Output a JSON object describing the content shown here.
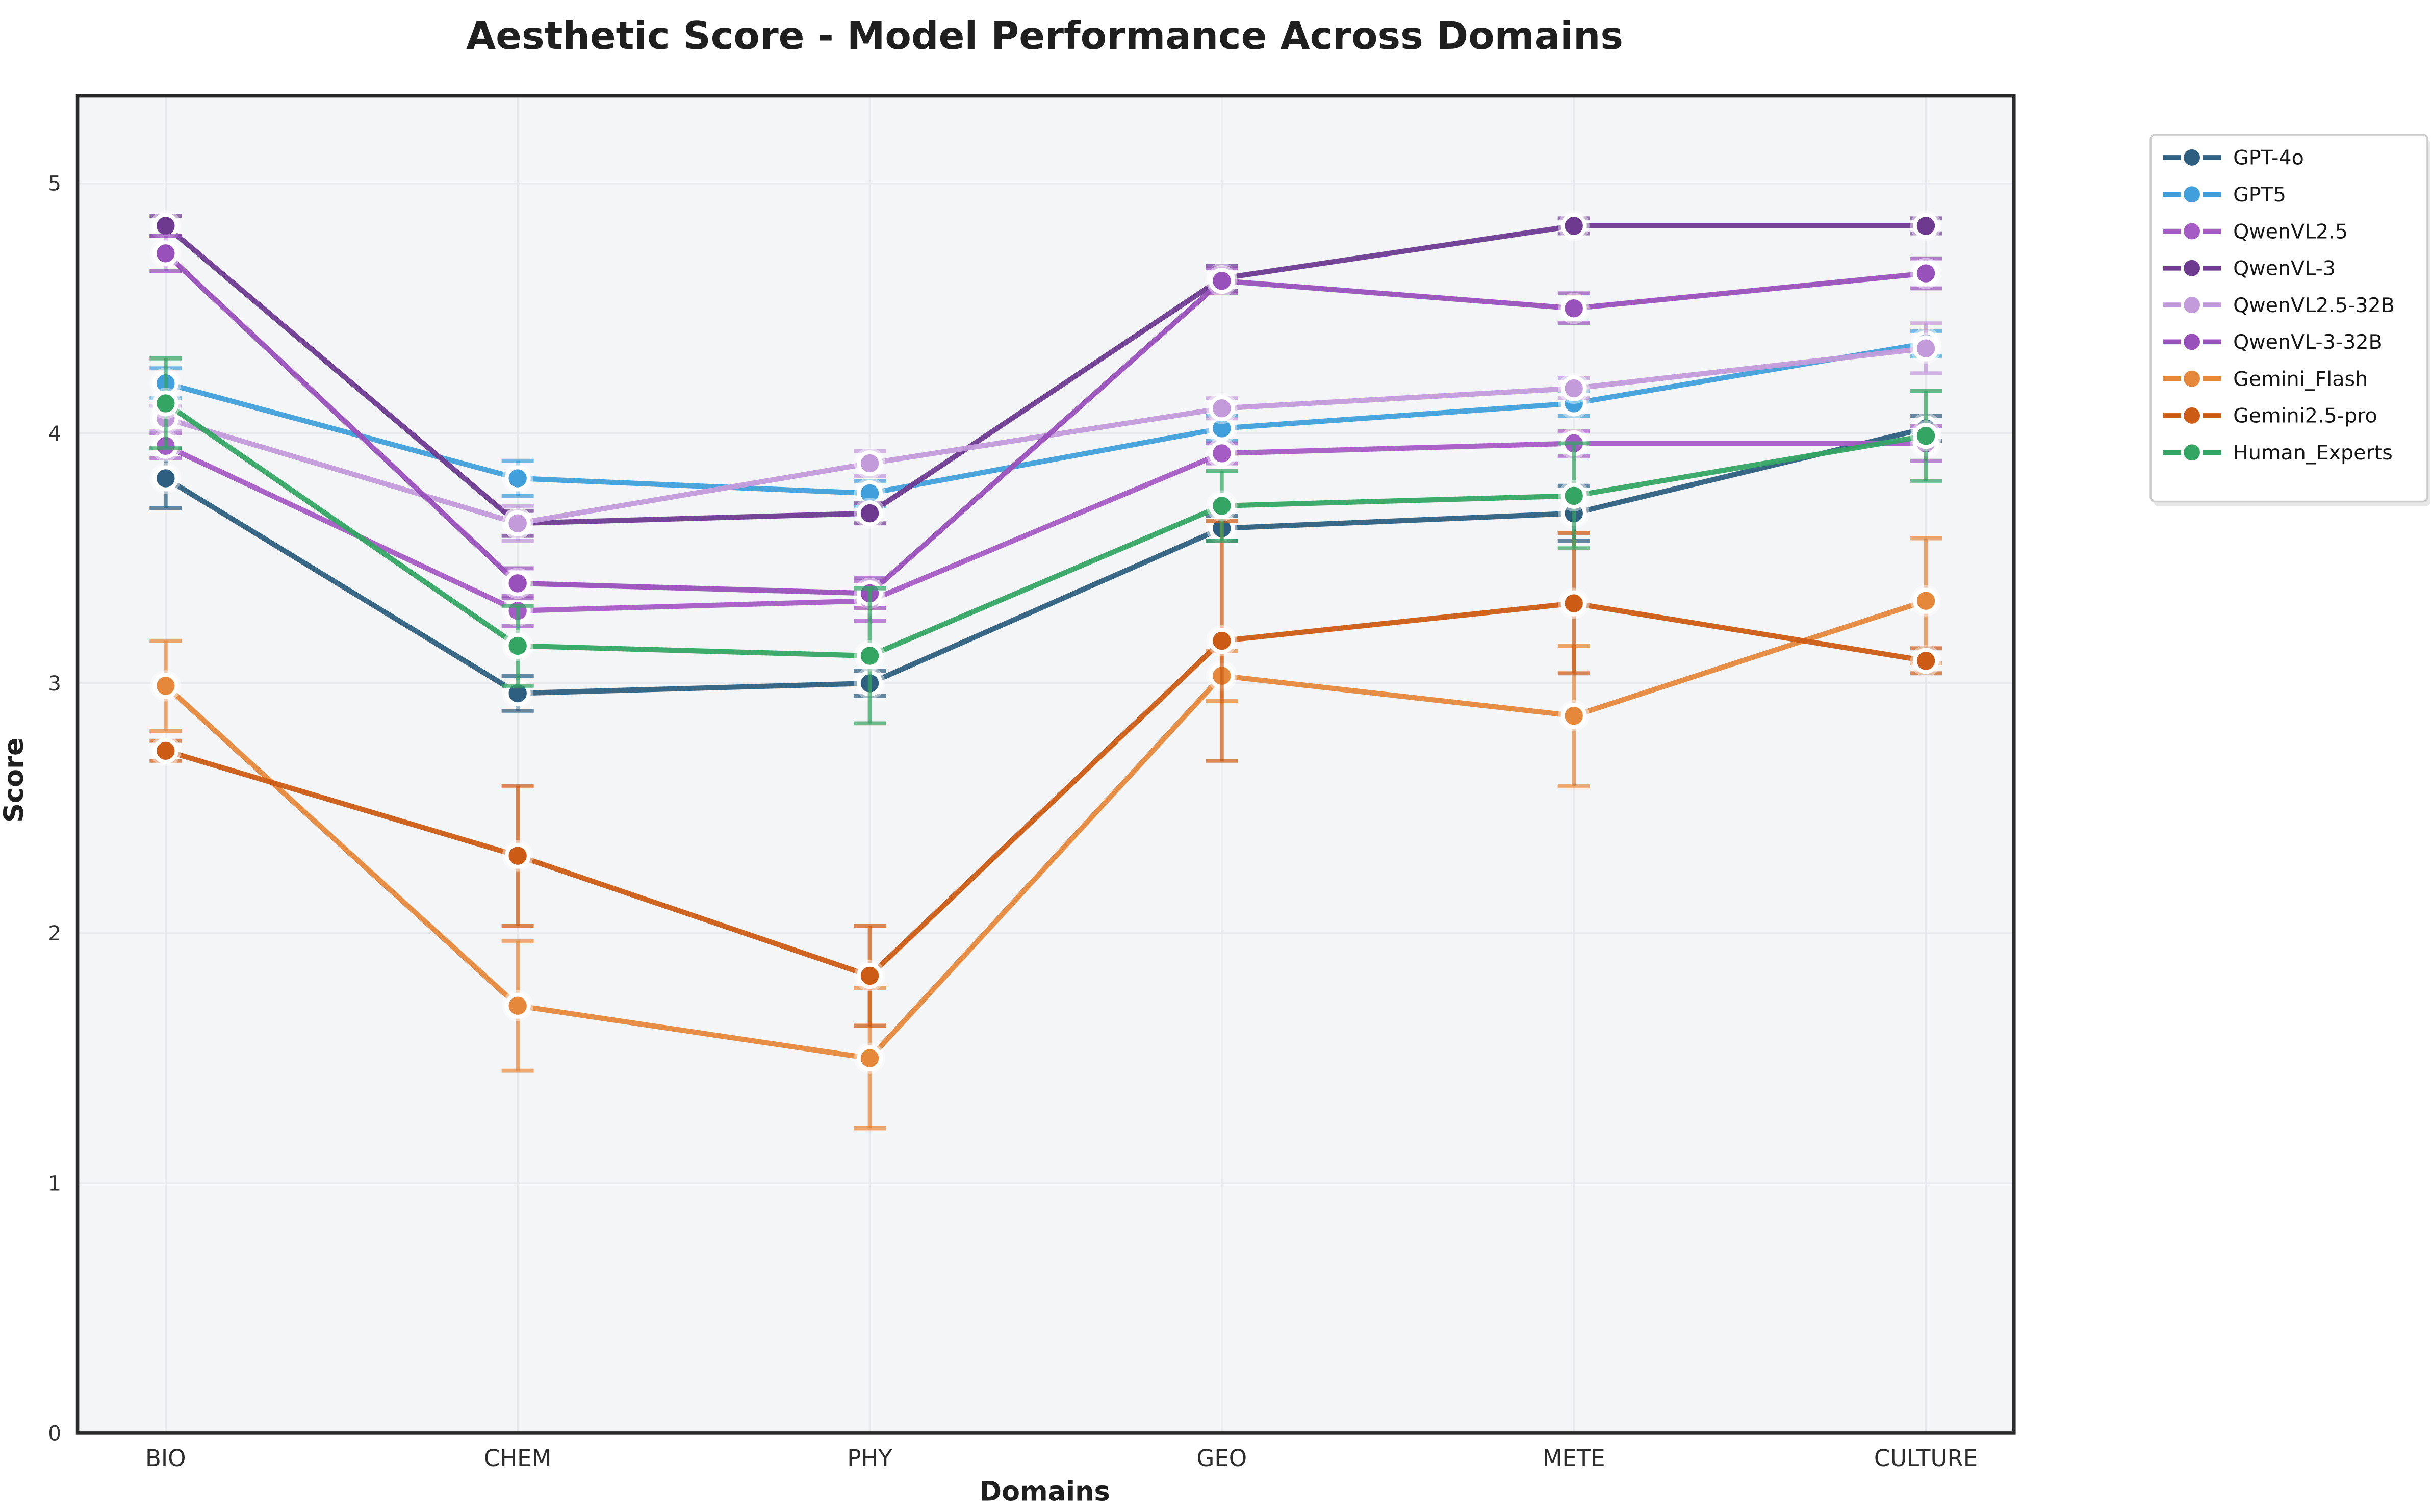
{
  "page": {
    "background": "#ffffff"
  },
  "chart_data": {
    "type": "line",
    "title": "Aesthetic Score - Model Performance Across Domains",
    "xlabel": "Domains",
    "ylabel": "Score",
    "categories": [
      "BIO",
      "CHEM",
      "PHY",
      "GEO",
      "METE",
      "CULTURE"
    ],
    "yticks": [
      0,
      1,
      2,
      3,
      4,
      5
    ],
    "ylim": [
      0,
      5.35
    ],
    "grid": true,
    "error_bars": true,
    "legend_position": "outside-right",
    "styles": {
      "plot_bg": "#f4f5f7",
      "grid_color": "#e7e9ec",
      "spine_color": "#2b2b2b",
      "legend_border": "#cccccc",
      "legend_bg": "#ffffff"
    },
    "series": [
      {
        "name": "GPT-4o",
        "color": "#2e5f80",
        "values": [
          3.82,
          2.96,
          3.0,
          3.62,
          3.68,
          4.02
        ],
        "errors": [
          0.12,
          0.07,
          0.05,
          0.05,
          0.11,
          0.05
        ]
      },
      {
        "name": "GPT5",
        "color": "#41a0db",
        "values": [
          4.2,
          3.82,
          3.76,
          4.02,
          4.12,
          4.36
        ],
        "errors": [
          0.06,
          0.07,
          0.05,
          0.05,
          0.05,
          0.05
        ]
      },
      {
        "name": "QwenVL2.5",
        "color": "#a55cc5",
        "values": [
          3.95,
          3.29,
          3.33,
          3.92,
          3.96,
          3.96
        ],
        "errors": [
          0.05,
          0.06,
          0.08,
          0.04,
          0.05,
          0.07
        ]
      },
      {
        "name": "QwenVL-3",
        "color": "#6d3a90",
        "values": [
          4.83,
          3.64,
          3.68,
          4.62,
          4.83,
          4.83
        ],
        "errors": [
          0.04,
          0.05,
          0.04,
          0.05,
          0.03,
          0.03
        ]
      },
      {
        "name": "QwenVL2.5-32B",
        "color": "#c39bdb",
        "values": [
          4.06,
          3.64,
          3.88,
          4.1,
          4.18,
          4.34
        ],
        "errors": [
          0.05,
          0.07,
          0.05,
          0.04,
          0.04,
          0.1
        ]
      },
      {
        "name": "QwenVL-3-32B",
        "color": "#9850bb",
        "values": [
          4.72,
          3.4,
          3.36,
          4.61,
          4.5,
          4.64
        ],
        "errors": [
          0.07,
          0.06,
          0.06,
          0.05,
          0.06,
          0.06
        ]
      },
      {
        "name": "Gemini_Flash",
        "color": "#e6883c",
        "values": [
          2.99,
          1.71,
          1.5,
          3.03,
          2.87,
          3.33
        ],
        "errors": [
          0.18,
          0.26,
          0.28,
          0.1,
          0.28,
          0.25
        ]
      },
      {
        "name": "Gemini2.5-pro",
        "color": "#cc5c15",
        "values": [
          2.73,
          2.31,
          1.83,
          3.17,
          3.32,
          3.09
        ],
        "errors": [
          0.04,
          0.28,
          0.2,
          0.48,
          0.28,
          0.05
        ]
      },
      {
        "name": "Human_Experts",
        "color": "#34a563",
        "values": [
          4.12,
          3.15,
          3.11,
          3.71,
          3.75,
          3.99
        ],
        "errors": [
          0.18,
          0.16,
          0.27,
          0.14,
          0.21,
          0.18
        ]
      }
    ]
  }
}
